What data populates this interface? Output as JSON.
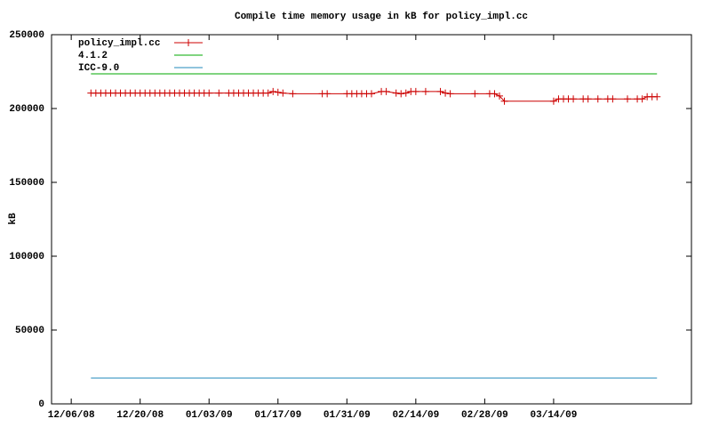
{
  "chart_data": {
    "type": "line",
    "title": "Compile time memory usage in kB for policy_impl.cc",
    "ylabel": "kB",
    "xlim": [
      "2008-12-02",
      "2009-04-11"
    ],
    "xticks": [
      {
        "value": "2008-12-06",
        "label": "12/06/08"
      },
      {
        "value": "2008-12-20",
        "label": "12/20/08"
      },
      {
        "value": "2009-01-03",
        "label": "01/03/09"
      },
      {
        "value": "2009-01-17",
        "label": "01/17/09"
      },
      {
        "value": "2009-01-31",
        "label": "01/31/09"
      },
      {
        "value": "2009-02-14",
        "label": "02/14/09"
      },
      {
        "value": "2009-02-28",
        "label": "02/28/09"
      },
      {
        "value": "2009-03-14",
        "label": "03/14/09"
      }
    ],
    "ylim": [
      0,
      250000
    ],
    "yticks": [
      0,
      50000,
      100000,
      150000,
      200000,
      250000
    ],
    "legend": "upper-left",
    "series": [
      {
        "name": "policy_impl.cc",
        "color": "#cc0000",
        "marker": "plus",
        "x": [
          "2008-12-10",
          "2008-12-11",
          "2008-12-12",
          "2008-12-13",
          "2008-12-14",
          "2008-12-15",
          "2008-12-16",
          "2008-12-17",
          "2008-12-18",
          "2008-12-19",
          "2008-12-20",
          "2008-12-21",
          "2008-12-22",
          "2008-12-23",
          "2008-12-24",
          "2008-12-25",
          "2008-12-26",
          "2008-12-27",
          "2008-12-28",
          "2008-12-29",
          "2008-12-30",
          "2008-12-31",
          "2009-01-01",
          "2009-01-02",
          "2009-01-03",
          "2009-01-05",
          "2009-01-07",
          "2009-01-08",
          "2009-01-09",
          "2009-01-10",
          "2009-01-11",
          "2009-01-12",
          "2009-01-13",
          "2009-01-14",
          "2009-01-15",
          "2009-01-16",
          "2009-01-17",
          "2009-01-18",
          "2009-01-20",
          "2009-01-26",
          "2009-01-27",
          "2009-01-31",
          "2009-02-01",
          "2009-02-02",
          "2009-02-03",
          "2009-02-04",
          "2009-02-05",
          "2009-02-07",
          "2009-02-08",
          "2009-02-10",
          "2009-02-11",
          "2009-02-12",
          "2009-02-13",
          "2009-02-14",
          "2009-02-16",
          "2009-02-19",
          "2009-02-20",
          "2009-02-21",
          "2009-02-26",
          "2009-03-01",
          "2009-03-02",
          "2009-03-03",
          "2009-03-04",
          "2009-03-14",
          "2009-03-15",
          "2009-03-16",
          "2009-03-17",
          "2009-03-18",
          "2009-03-20",
          "2009-03-21",
          "2009-03-23",
          "2009-03-25",
          "2009-03-26",
          "2009-03-29",
          "2009-03-31",
          "2009-04-01",
          "2009-04-02",
          "2009-04-03",
          "2009-04-04"
        ],
        "values": [
          210500,
          210500,
          210500,
          210500,
          210500,
          210500,
          210500,
          210500,
          210500,
          210500,
          210500,
          210500,
          210500,
          210500,
          210500,
          210500,
          210500,
          210500,
          210500,
          210500,
          210500,
          210500,
          210500,
          210500,
          210500,
          210500,
          210500,
          210500,
          210500,
          210500,
          210500,
          210500,
          210500,
          210500,
          210500,
          211500,
          211000,
          210500,
          210000,
          210000,
          210000,
          210000,
          210000,
          210000,
          210000,
          210000,
          210000,
          211500,
          211500,
          210500,
          210000,
          210500,
          211500,
          211500,
          211500,
          211500,
          210500,
          210000,
          210000,
          210000,
          210000,
          208500,
          205000,
          205000,
          206500,
          206500,
          206500,
          206500,
          206500,
          206500,
          206500,
          206500,
          206500,
          206500,
          206500,
          206500,
          208000,
          208000,
          208000
        ]
      },
      {
        "name": "4.1.2",
        "color": "#00aa00",
        "x": [
          "2008-12-10",
          "2009-04-04"
        ],
        "values": [
          223500,
          223500
        ]
      },
      {
        "name": "ICC-9.0",
        "color": "#2288bb",
        "x": [
          "2008-12-10",
          "2009-04-04"
        ],
        "values": [
          17500,
          17500
        ]
      }
    ]
  }
}
